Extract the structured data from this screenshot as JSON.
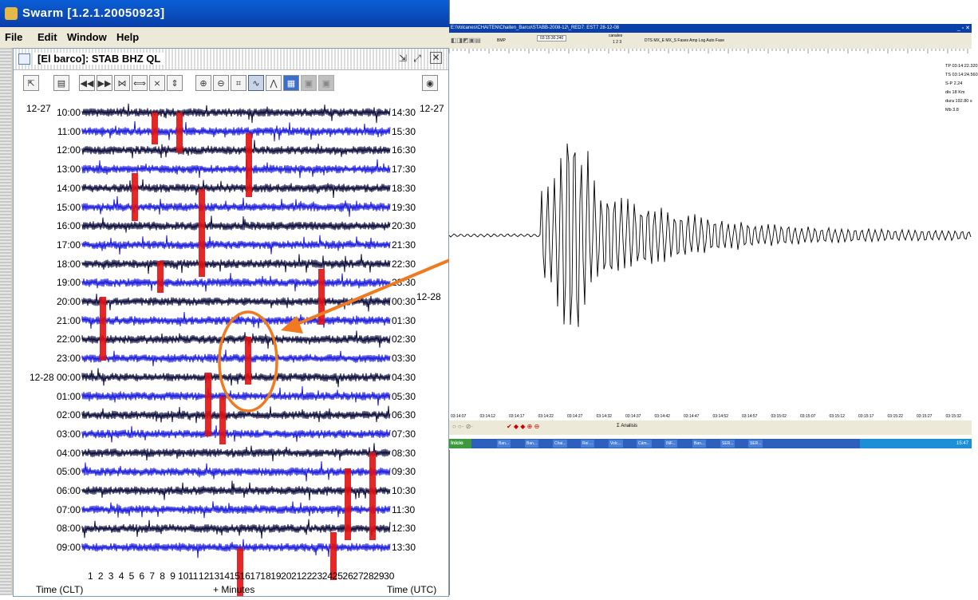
{
  "swarm": {
    "title": "Swarm [1.2.1.20050923]",
    "menu": [
      "File",
      "Edit",
      "Window",
      "Help"
    ],
    "window_title": "[El barco]: STAB BHZ QL",
    "left_times": [
      "10:00",
      "11:00",
      "12:00",
      "13:00",
      "14:00",
      "15:00",
      "16:00",
      "17:00",
      "18:00",
      "19:00",
      "20:00",
      "21:00",
      "22:00",
      "23:00",
      "12-28 00:00",
      "01:00",
      "02:00",
      "03:00",
      "04:00",
      "05:00",
      "06:00",
      "07:00",
      "08:00",
      "09:00"
    ],
    "right_times": [
      "14:30",
      "15:30",
      "16:30",
      "17:30",
      "18:30",
      "19:30",
      "20:30",
      "21:30",
      "22:30",
      "23:30",
      "00:30",
      "01:30",
      "02:30",
      "03:30",
      "04:30",
      "05:30",
      "06:30",
      "07:30",
      "08:30",
      "09:30",
      "10:30",
      "11:30",
      "12:30",
      "13:30"
    ],
    "date_left": "12-27",
    "date_right_top": "12-27",
    "date_right_mid": "12-28",
    "minute_labels": [
      "1",
      "2",
      "3",
      "4",
      "5",
      "6",
      "7",
      "8",
      "9",
      "10",
      "11",
      "12",
      "13",
      "14",
      "15",
      "16",
      "17",
      "18",
      "19",
      "20",
      "21",
      "22",
      "23",
      "24",
      "25",
      "26",
      "27",
      "28",
      "29",
      "30"
    ],
    "time_left_label": "Time (CLT)",
    "minutes_label": "+ Minutes",
    "time_right_label": "Time (UTC)",
    "colors": {
      "trace_dark": "#0a0a3a",
      "trace_blue": "#1a1adc",
      "trigger_red": "#e21010",
      "highlight": "#f07a20"
    }
  },
  "trace": {
    "title": "E:\\Volcanes\\CHAITEN\\Chaiten_Barco\\STABB-2008-12\\_RED7: EST7 28-12-08",
    "toolbar": {
      "bmp": "BMP",
      "time": "03:15:30.240",
      "canales": "canales",
      "ch_opts": "1 2 3",
      "checks": "DTS  MX_E  MX_S  Fases  Amp  Log  Auto  Fase"
    },
    "readout": [
      "TP 03:14:22.320",
      "TS 03:14:24.560",
      "S-P 2.24",
      "dis 18 Km",
      "dura 192.80 s",
      "Mb 3.8"
    ],
    "time_ticks": [
      "03:14:07",
      "03:14:12",
      "03:14:17",
      "03:14:22",
      "03:14:27",
      "03:14:32",
      "03:14:37",
      "03:14:42",
      "03:14:47",
      "03:14:52",
      "03:14:57",
      "03:15:02",
      "03:15:07",
      "03:15:12",
      "03:15:17",
      "03:15:22",
      "03:15:27",
      "03:15:32"
    ],
    "analisis": "Σ Analisis",
    "taskbar": {
      "start": "Inicio",
      "items": [
        "Ban...",
        "Ban...",
        "Chai...",
        "Rei ...",
        "Volc...",
        "Cám...",
        "INF...",
        "Ban...",
        "SER...",
        "SER..."
      ],
      "clock": "15:47"
    }
  }
}
